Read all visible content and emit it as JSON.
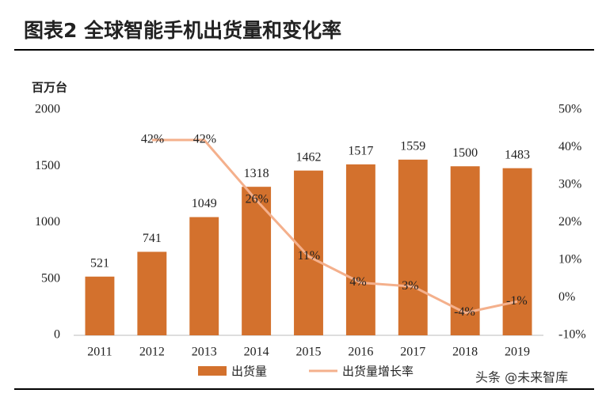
{
  "chart_data": {
    "type": "bar",
    "title": "图表2 全球智能手机出货量和变化率",
    "y_label": "百万台",
    "categories": [
      "2011",
      "2012",
      "2013",
      "2014",
      "2015",
      "2016",
      "2017",
      "2018",
      "2019"
    ],
    "series": [
      {
        "name": "出货量",
        "type": "bar",
        "color": "#d3712d",
        "values": [
          521,
          741,
          1049,
          1318,
          1462,
          1517,
          1559,
          1500,
          1483
        ]
      },
      {
        "name": "出货量增长率",
        "type": "line",
        "axis": "y2",
        "color": "#f4b08c",
        "values": [
          null,
          42,
          42,
          26,
          11,
          4,
          3,
          -4,
          -1
        ],
        "value_labels": [
          null,
          "42%",
          "42%",
          "26%",
          "11%",
          "4%",
          "3%",
          "-4%",
          "-1%"
        ]
      }
    ],
    "ylim": [
      0,
      2000
    ],
    "yticks": [
      0,
      500,
      1000,
      1500,
      2000
    ],
    "y2lim": [
      -10,
      50
    ],
    "y2ticks": [
      {
        "value": -10,
        "label": "-10%"
      },
      {
        "value": 0,
        "label": "0%"
      },
      {
        "value": 10,
        "label": "10%"
      },
      {
        "value": 20,
        "label": "20%"
      },
      {
        "value": 30,
        "label": "30%"
      },
      {
        "value": 40,
        "label": "40%"
      },
      {
        "value": 50,
        "label": "50%"
      }
    ],
    "legend": "bottom",
    "watermark": "头条 @未来智库"
  }
}
